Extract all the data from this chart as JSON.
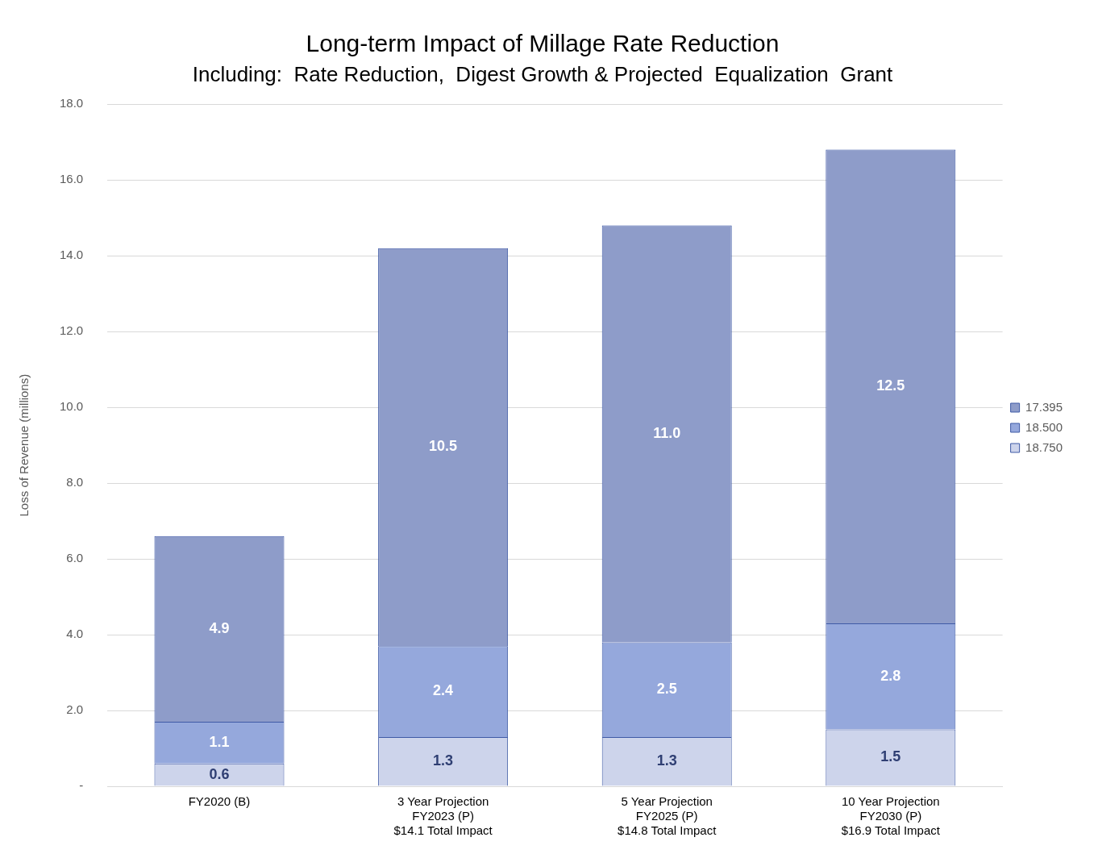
{
  "chart_data": {
    "type": "bar",
    "title": "Long-term Impact of Millage Rate Reduction",
    "subtitle": "Including:  Rate Reduction,  Digest Growth & Projected  Equalization  Grant",
    "ylabel": "Loss of Revenue (millions)",
    "categories": [
      "FY2020 (B)",
      "3 Year Projection\nFY2023 (P)\n$14.1 Total Impact",
      "5 Year Projection\nFY2025 (P)\n$14.8 Total Impact",
      "10 Year Projection\nFY2030 (P)\n$16.9 Total Impact"
    ],
    "stacked": true,
    "series": [
      {
        "name": "18.750",
        "color": "#cdd4eb",
        "values": [
          0.6,
          1.3,
          1.3,
          1.5
        ],
        "value_labels": [
          "0.6",
          "1.3",
          "1.3",
          "1.5"
        ]
      },
      {
        "name": "18.500",
        "color": "#95a8dc",
        "values": [
          1.1,
          2.4,
          2.5,
          2.8
        ],
        "value_labels": [
          "1.1",
          "2.4",
          "2.5",
          "2.8"
        ]
      },
      {
        "name": "17.395",
        "color": "#8e9cc9",
        "values": [
          4.9,
          10.5,
          11.0,
          12.5
        ],
        "value_labels": [
          "4.9",
          "10.5",
          "11.0",
          "12.5"
        ]
      }
    ],
    "ylim": [
      0,
      18
    ],
    "yticks": [
      {
        "value": 0,
        "label": "-"
      },
      {
        "value": 2,
        "label": "2.0"
      },
      {
        "value": 4,
        "label": "4.0"
      },
      {
        "value": 6,
        "label": "6.0"
      },
      {
        "value": 8,
        "label": "8.0"
      },
      {
        "value": 10,
        "label": "10.0"
      },
      {
        "value": 12,
        "label": "12.0"
      },
      {
        "value": 14,
        "label": "14.0"
      },
      {
        "value": 16,
        "label": "16.0"
      },
      {
        "value": 18,
        "label": "18.0"
      }
    ],
    "grid": "y",
    "legend": "right"
  }
}
